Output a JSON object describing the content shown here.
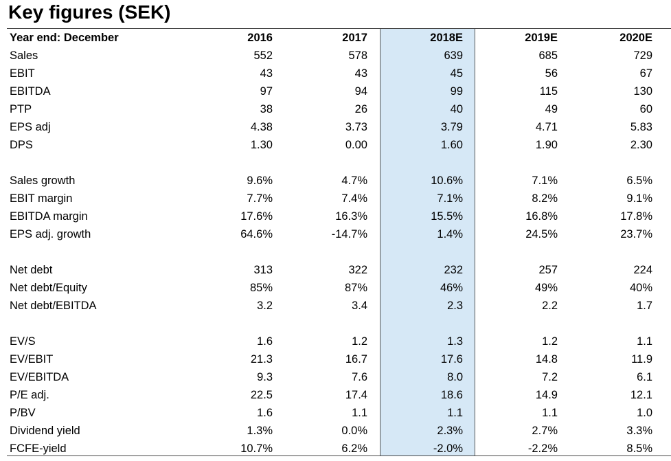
{
  "title": "Key figures (SEK)",
  "table": {
    "columns": [
      "Year end: December",
      "2016",
      "2017",
      "2018E",
      "2019E",
      "2020E"
    ],
    "groups": [
      [
        [
          "Sales",
          "552",
          "578",
          "639",
          "685",
          "729"
        ],
        [
          "EBIT",
          "43",
          "43",
          "45",
          "56",
          "67"
        ],
        [
          "EBITDA",
          "97",
          "94",
          "99",
          "115",
          "130"
        ],
        [
          "PTP",
          "38",
          "26",
          "40",
          "49",
          "60"
        ],
        [
          "EPS adj",
          "4.38",
          "3.73",
          "3.79",
          "4.71",
          "5.83"
        ],
        [
          "DPS",
          "1.30",
          "0.00",
          "1.60",
          "1.90",
          "2.30"
        ]
      ],
      [
        [
          "Sales growth",
          "9.6%",
          "4.7%",
          "10.6%",
          "7.1%",
          "6.5%"
        ],
        [
          "EBIT margin",
          "7.7%",
          "7.4%",
          "7.1%",
          "8.2%",
          "9.1%"
        ],
        [
          "EBITDA margin",
          "17.6%",
          "16.3%",
          "15.5%",
          "16.8%",
          "17.8%"
        ],
        [
          "EPS adj. growth",
          "64.6%",
          "-14.7%",
          "1.4%",
          "24.5%",
          "23.7%"
        ]
      ],
      [
        [
          "Net debt",
          "313",
          "322",
          "232",
          "257",
          "224"
        ],
        [
          "Net debt/Equity",
          "85%",
          "87%",
          "46%",
          "49%",
          "40%"
        ],
        [
          "Net debt/EBITDA",
          "3.2",
          "3.4",
          "2.3",
          "2.2",
          "1.7"
        ]
      ],
      [
        [
          "EV/S",
          "1.6",
          "1.2",
          "1.3",
          "1.2",
          "1.1"
        ],
        [
          "EV/EBIT",
          "21.3",
          "16.7",
          "17.6",
          "14.8",
          "11.9"
        ],
        [
          "EV/EBITDA",
          "9.3",
          "7.6",
          "8.0",
          "7.2",
          "6.1"
        ],
        [
          "P/E adj.",
          "22.5",
          "17.4",
          "18.6",
          "14.9",
          "12.1"
        ],
        [
          "P/BV",
          "1.6",
          "1.1",
          "1.1",
          "1.1",
          "1.0"
        ],
        [
          "Dividend yield",
          "1.3%",
          "0.0%",
          "2.3%",
          "2.7%",
          "3.3%"
        ],
        [
          "FCFE-yield",
          "10.7%",
          "6.2%",
          "-2.0%",
          "-2.2%",
          "8.5%"
        ]
      ]
    ]
  }
}
